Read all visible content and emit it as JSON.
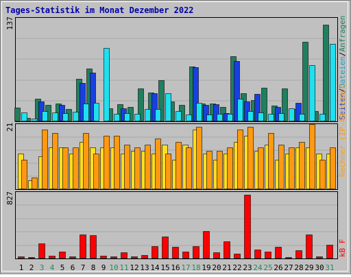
{
  "chart_data": [
    {
      "type": "bar",
      "title": "Tages-Statistik im Monat Dezember 2022",
      "categories": [
        "1",
        "2",
        "3",
        "4",
        "5",
        "6",
        "7",
        "8",
        "9",
        "10",
        "11",
        "12",
        "13",
        "14",
        "15",
        "16",
        "17",
        "18",
        "19",
        "20",
        "21",
        "22",
        "23",
        "24",
        "25",
        "26",
        "27",
        "28",
        "29",
        "30",
        "31"
      ],
      "weekend_days": [
        "3",
        "4",
        "10",
        "11",
        "17",
        "18",
        "24",
        "25",
        "31"
      ],
      "ylim": [
        0,
        137
      ],
      "ytick_label": "137",
      "right_labels": [
        "Anfragen",
        "/",
        "Dateien",
        "/",
        "Seiten"
      ],
      "series": [
        {
          "name": "Anfragen",
          "color": "#1f7f5f",
          "values": [
            19,
            5,
            31,
            22,
            24,
            17,
            58,
            72,
            0,
            18,
            23,
            20,
            45,
            39,
            56,
            27,
            22,
            75,
            24,
            24,
            20,
            89,
            38,
            29,
            46,
            21,
            45,
            17,
            108,
            14,
            131
          ]
        },
        {
          "name": "Dateien",
          "color": "#1840e0",
          "values": [
            0,
            0,
            27,
            0,
            22,
            0,
            52,
            66,
            0,
            0,
            18,
            0,
            0,
            38,
            0,
            0,
            0,
            74,
            22,
            23,
            11,
            82,
            27,
            37,
            0,
            20,
            0,
            25,
            0,
            0,
            0
          ]
        },
        {
          "name": "Seiten",
          "color": "#20e0f0",
          "values": [
            12,
            4,
            14,
            12,
            11,
            13,
            24,
            25,
            100,
            10,
            11,
            10,
            17,
            17,
            38,
            14,
            9,
            25,
            9,
            10,
            10,
            31,
            14,
            12,
            10,
            11,
            18,
            10,
            76,
            10,
            105
          ]
        }
      ]
    },
    {
      "type": "bar",
      "ylim": [
        0,
        21
      ],
      "ytick_label": "21",
      "right_label": "Rechner (IP-Adressen)",
      "series": [
        {
          "name": "Besuche",
          "color": "#ffe020",
          "values": [
            12,
            3,
            11,
            14,
            14,
            12,
            16,
            14,
            14,
            14,
            12,
            13,
            13,
            12,
            15,
            10,
            15,
            20,
            12,
            10,
            12,
            16,
            18,
            13,
            15,
            10,
            12,
            14,
            14,
            12,
            12
          ]
        },
        {
          "name": "Rechner",
          "color": "#ff9a10",
          "values": [
            10,
            4,
            20,
            19,
            14,
            14,
            19,
            12,
            18,
            18,
            15,
            14,
            15,
            17,
            12,
            16,
            14,
            21,
            13,
            13,
            14,
            20,
            21,
            14,
            19,
            15,
            14,
            16,
            22,
            10,
            14
          ]
        }
      ]
    },
    {
      "type": "bar",
      "ylim": [
        0,
        827
      ],
      "ytick_label": "827",
      "right_label": "kB F",
      "series": [
        {
          "name": "kB F",
          "color": "#ff0000",
          "values": [
            28,
            14,
            200,
            35,
            92,
            28,
            315,
            304,
            34,
            28,
            80,
            30,
            48,
            160,
            286,
            150,
            90,
            158,
            360,
            84,
            224,
            62,
            827,
            120,
            90,
            150,
            22,
            110,
            310,
            30,
            180
          ]
        }
      ]
    }
  ]
}
